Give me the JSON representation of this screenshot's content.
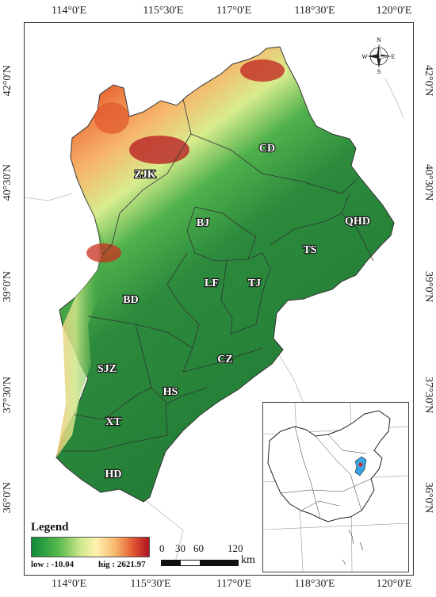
{
  "lon_ticks": [
    "114°0'E",
    "115°30'E",
    "117°0'E",
    "118°30'E",
    "120°0'E"
  ],
  "lat_ticks": [
    "42°0'N",
    "40°30'N",
    "39°0'N",
    "37°30'N",
    "36°0'N"
  ],
  "cities": [
    "ZJK",
    "CD",
    "BJ",
    "QHD",
    "TS",
    "LF",
    "TJ",
    "BD",
    "CZ",
    "SJZ",
    "HS",
    "XT",
    "HD"
  ],
  "legend": {
    "title": "Legend",
    "low": "low : -10.04",
    "high": "hig : 2621.97",
    "ramp_colors": [
      "#0f8a3a",
      "#52b84b",
      "#cfe98c",
      "#fff2b0",
      "#f6b46a",
      "#e35a34",
      "#b01220"
    ]
  },
  "scale": {
    "labels": [
      "0",
      "30",
      "60",
      "120"
    ],
    "unit": "km"
  },
  "compass": {
    "n": "N",
    "s": "S",
    "e": "E",
    "w": "W"
  },
  "colors": {
    "lowland": "#2e7d32",
    "highland": "#e0502c",
    "peak": "#b01220",
    "inset_highlight": "#3aa3e3"
  }
}
